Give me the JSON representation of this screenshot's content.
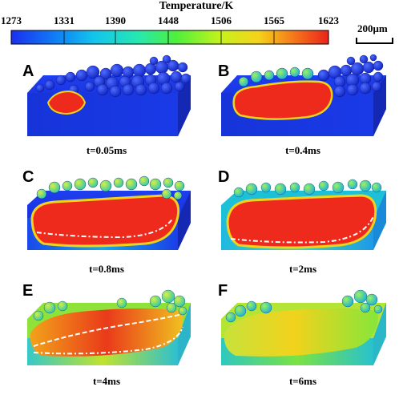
{
  "colorbar": {
    "title": "Temperature/K",
    "ticks": [
      "1273",
      "1331",
      "1390",
      "1448",
      "1506",
      "1565",
      "1623"
    ],
    "colors": [
      "#1a2ff0",
      "#13b8f2",
      "#26e6c8",
      "#3cf04a",
      "#b7f21c",
      "#f2d21a",
      "#f26a12",
      "#ee2a1c"
    ]
  },
  "scale_bar": {
    "label": "200μm"
  },
  "panels": [
    {
      "letter": "A",
      "time": "t=0.05ms"
    },
    {
      "letter": "B",
      "time": "t=0.4ms"
    },
    {
      "letter": "C",
      "time": "t=0.8ms"
    },
    {
      "letter": "D",
      "time": "t=2ms"
    },
    {
      "letter": "E",
      "time": "t=4ms"
    },
    {
      "letter": "F",
      "time": "t=6ms"
    }
  ]
}
